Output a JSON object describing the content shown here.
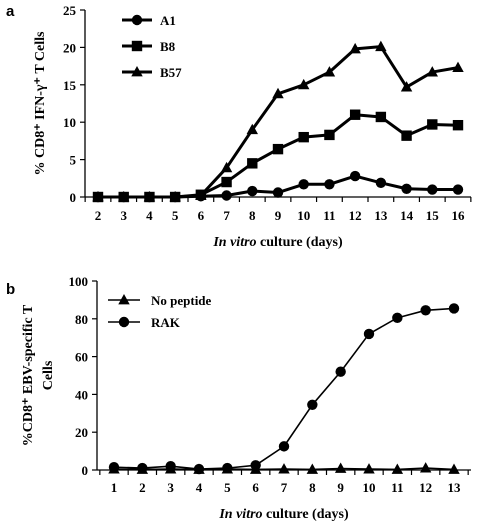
{
  "figure": {
    "panels": [
      {
        "letter": "a",
        "chart_data": {
          "type": "line",
          "x": [
            2,
            3,
            4,
            5,
            6,
            7,
            8,
            9,
            10,
            11,
            12,
            13,
            14,
            15,
            16
          ],
          "xlabel_italic": "In vitro",
          "xlabel_rest": " culture (days)",
          "ylabel": "% CD8⁺ IFN-γ⁺ T Cells",
          "ylim": [
            0,
            25
          ],
          "yticks": [
            0,
            5,
            10,
            15,
            20,
            25
          ],
          "legend_position": "top-left",
          "series": [
            {
              "name": "A1",
              "marker": "circle",
              "values": [
                0,
                0,
                0,
                0,
                0.1,
                0.2,
                0.8,
                0.6,
                1.7,
                1.7,
                2.8,
                1.9,
                1.1,
                1.0,
                1.0
              ]
            },
            {
              "name": "B8",
              "marker": "square",
              "values": [
                0,
                0,
                0,
                0,
                0.3,
                2.0,
                4.5,
                6.4,
                8.0,
                8.3,
                11.0,
                10.7,
                8.2,
                9.7,
                9.6
              ]
            },
            {
              "name": "B57",
              "marker": "triangle",
              "values": [
                0,
                0,
                0,
                0,
                0.2,
                3.9,
                9.0,
                13.8,
                15.0,
                16.7,
                19.8,
                20.1,
                14.7,
                16.7,
                17.3
              ]
            }
          ]
        }
      },
      {
        "letter": "b",
        "chart_data": {
          "type": "line",
          "x": [
            1,
            2,
            3,
            4,
            5,
            6,
            7,
            8,
            9,
            10,
            11,
            12,
            13
          ],
          "xlabel_italic": "In vitro",
          "xlabel_rest": " culture (days)",
          "ylabel_lines": [
            "%CD8⁺ EBV-specific T",
            "Cells"
          ],
          "ylim": [
            0,
            100
          ],
          "yticks": [
            0,
            20,
            40,
            60,
            80,
            100
          ],
          "legend_position": "top-left",
          "series": [
            {
              "name": "No peptide",
              "marker": "triangle",
              "values": [
                0.5,
                0.3,
                0.5,
                0.3,
                0.5,
                0.3,
                0.5,
                0.3,
                0.8,
                0.5,
                0.3,
                1.0,
                0.3
              ]
            },
            {
              "name": "RAK",
              "marker": "circle",
              "values": [
                1.5,
                1.0,
                2.0,
                0.5,
                1.0,
                2.5,
                12.5,
                34.5,
                52.0,
                72.0,
                80.5,
                84.5,
                85.5
              ]
            }
          ]
        }
      }
    ]
  }
}
